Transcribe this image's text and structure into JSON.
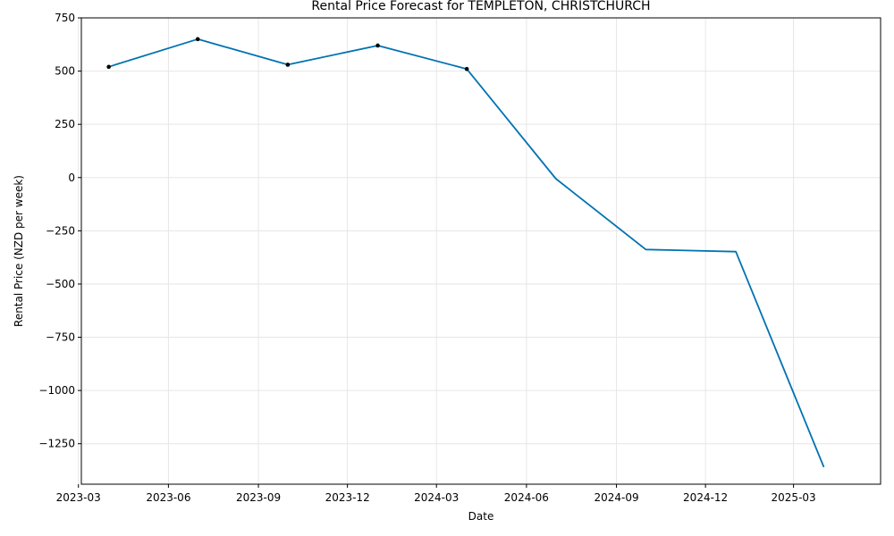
{
  "chart_data": {
    "type": "line",
    "title": "Rental Price Forecast for TEMPLETON, CHRISTCHURCH",
    "xlabel": "Date",
    "ylabel": "Rental Price (NZD per week)",
    "grid": true,
    "ylim": [
      -1440,
      750
    ],
    "xlim": [
      "2023-03-04",
      "2025-05-29"
    ],
    "yticks": [
      750,
      500,
      250,
      0,
      -250,
      -500,
      -750,
      -1000,
      -1250
    ],
    "ytick_labels": [
      "750",
      "500",
      "250",
      "0",
      "−250",
      "−500",
      "−750",
      "−1000",
      "−1250"
    ],
    "xticks": [
      "2023-03-01",
      "2023-06-01",
      "2023-09-01",
      "2023-12-01",
      "2024-03-01",
      "2024-06-01",
      "2024-09-01",
      "2024-12-01",
      "2025-03-01"
    ],
    "xtick_labels": [
      "2023-03",
      "2023-06",
      "2023-09",
      "2023-12",
      "2024-03",
      "2024-06",
      "2024-09",
      "2024-12",
      "2025-03"
    ],
    "series": [
      {
        "type": "line",
        "color": "#0072b2",
        "points": [
          {
            "x": "2023-04-01",
            "y": 520
          },
          {
            "x": "2023-07-01",
            "y": 650
          },
          {
            "x": "2023-10-01",
            "y": 530
          },
          {
            "x": "2024-01-01",
            "y": 620
          },
          {
            "x": "2024-04-01",
            "y": 510
          },
          {
            "x": "2024-07-01",
            "y": -5
          },
          {
            "x": "2024-10-01",
            "y": -338
          },
          {
            "x": "2025-01-01",
            "y": -348
          },
          {
            "x": "2025-04-01",
            "y": -1360
          }
        ]
      },
      {
        "type": "scatter",
        "color": "#000000",
        "points": [
          {
            "x": "2023-04-01",
            "y": 520
          },
          {
            "x": "2023-07-01",
            "y": 650
          },
          {
            "x": "2023-10-01",
            "y": 530
          },
          {
            "x": "2024-01-01",
            "y": 620
          },
          {
            "x": "2024-04-01",
            "y": 510
          }
        ]
      }
    ]
  }
}
